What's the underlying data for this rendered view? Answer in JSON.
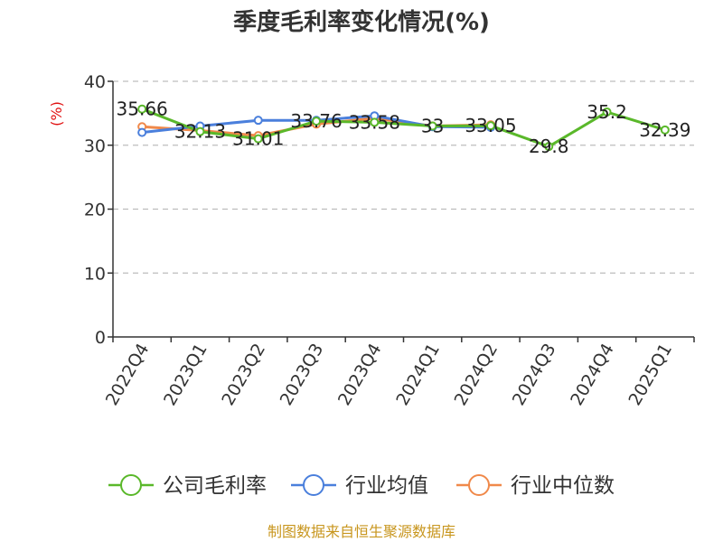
{
  "chart_data": {
    "type": "line",
    "title": "季度毛利率变化情况(%)",
    "ylabel": "(%)",
    "xlabel": "",
    "ylim": [
      0,
      40
    ],
    "yticks": [
      0,
      10,
      20,
      30,
      40
    ],
    "grid": true,
    "legend_position": "bottom",
    "categories": [
      "2022Q4",
      "2023Q1",
      "2023Q2",
      "2023Q3",
      "2023Q4",
      "2024Q1",
      "2024Q2",
      "2024Q3",
      "2024Q4",
      "2025Q1"
    ],
    "series": [
      {
        "name": "公司毛利率",
        "color": "#5ab82a",
        "values": [
          35.66,
          32.13,
          31.01,
          33.76,
          33.58,
          33,
          33.05,
          29.8,
          35.2,
          32.39
        ],
        "labels": [
          "35.66",
          "32.13",
          "31.01",
          "33.76",
          "33.58",
          "33",
          "33.05",
          "29.8",
          "35.2",
          "32.39"
        ]
      },
      {
        "name": "行业均值",
        "color": "#4a7fdc",
        "values": [
          32.0,
          33.0,
          33.9,
          33.9,
          34.6,
          32.9,
          32.8,
          null,
          null,
          null
        ]
      },
      {
        "name": "行业中位数",
        "color": "#f0894a",
        "values": [
          32.9,
          32.3,
          31.5,
          33.3,
          34.2,
          33.0,
          33.2,
          null,
          null,
          null
        ]
      }
    ]
  },
  "source": "制图数据来自恒生聚源数据库"
}
